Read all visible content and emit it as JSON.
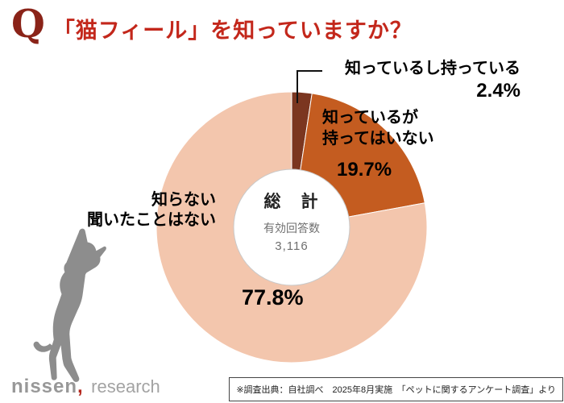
{
  "header": {
    "q_mark": "Q",
    "title": "「猫フィール」を知っていますか？"
  },
  "chart_data": {
    "type": "pie",
    "style": "donut",
    "title": "「猫フィール」を知っていますか？",
    "start_angle_deg": 0,
    "direction": "clockwise",
    "segments": [
      {
        "name": "know-and-have",
        "label": "知っているし持っている",
        "value": 2.4,
        "pct_label": "2.4%",
        "color": "#7b3620"
      },
      {
        "name": "know-but-not-have",
        "label": "知っているが持ってはいない",
        "label_line1": "知っているが",
        "label_line2": "持ってはいない",
        "value": 19.7,
        "pct_label": "19.7%",
        "color": "#c45c20"
      },
      {
        "name": "dont-know",
        "label": "知らない 聞いたことはない",
        "label_line1": "知らない",
        "label_line2": "聞いたことはない",
        "value": 77.8,
        "pct_label": "77.8%",
        "color": "#f3c6ad"
      }
    ],
    "center": {
      "title": "総　計",
      "subtitle": "有効回答数",
      "count": "3,116"
    }
  },
  "footer": {
    "logo_nissen": "nissen",
    "logo_comma": ",",
    "logo_research": "research",
    "source": "※調査出典：自社調べ　2025年8月実施　「ペットに関するアンケート調査」より"
  }
}
